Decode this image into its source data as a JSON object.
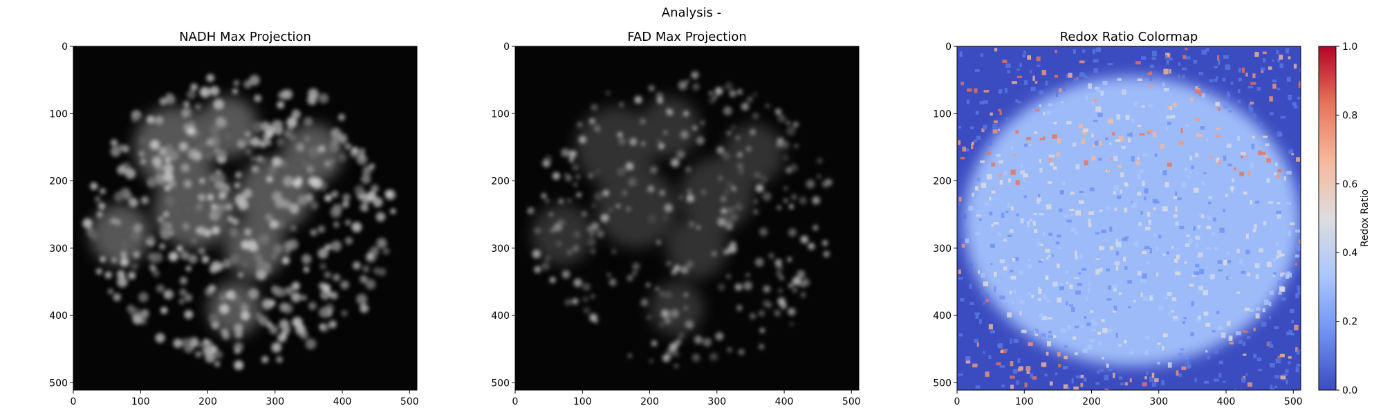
{
  "figure": {
    "suptitle": "Analysis -"
  },
  "panels": [
    {
      "id": "nadh",
      "title": "NADH Max Projection",
      "image_kind": "grayscale fluorescence microscopy image",
      "colormap": "gray"
    },
    {
      "id": "fad",
      "title": "FAD Max Projection",
      "image_kind": "grayscale fluorescence microscopy image",
      "colormap": "gray"
    },
    {
      "id": "redox",
      "title": "Redox Ratio Colormap",
      "image_kind": "pseudocolor redox ratio map",
      "colormap": "coolwarm",
      "colorbar": {
        "label": "Redox Ratio",
        "ticks": [
          "0.0",
          "0.2",
          "0.4",
          "0.6",
          "0.8",
          "1.0"
        ],
        "range": [
          0.0,
          1.0
        ],
        "colors": [
          "#3b4cc0",
          "#6f91f2",
          "#aac7fd",
          "#dddddd",
          "#f6b89c",
          "#e7745b",
          "#b40426"
        ]
      }
    }
  ],
  "chart_data": [
    {
      "type": "heatmap",
      "title": "NADH Max Projection",
      "xlabel": "",
      "ylabel": "",
      "xlim": [
        0,
        511
      ],
      "ylim": [
        511,
        0
      ],
      "xticks": [
        0,
        100,
        200,
        300,
        400,
        500
      ],
      "yticks": [
        0,
        100,
        200,
        300,
        400,
        500
      ],
      "colormap": "gray"
    },
    {
      "type": "heatmap",
      "title": "FAD Max Projection",
      "xlabel": "",
      "ylabel": "",
      "xlim": [
        0,
        511
      ],
      "ylim": [
        511,
        0
      ],
      "xticks": [
        0,
        100,
        200,
        300,
        400,
        500
      ],
      "yticks": [
        0,
        100,
        200,
        300,
        400,
        500
      ],
      "colormap": "gray"
    },
    {
      "type": "heatmap",
      "title": "Redox Ratio Colormap",
      "xlabel": "",
      "ylabel": "",
      "xlim": [
        0,
        511
      ],
      "ylim": [
        511,
        0
      ],
      "xticks": [
        0,
        100,
        200,
        300,
        400,
        500
      ],
      "yticks": [
        0,
        100,
        200,
        300,
        400,
        500
      ],
      "colormap": "coolwarm",
      "value_range": [
        0.0,
        1.0
      ],
      "colorbar_label": "Redox Ratio"
    }
  ]
}
